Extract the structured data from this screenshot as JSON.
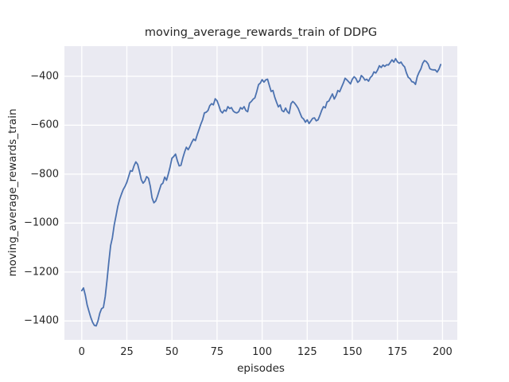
{
  "chart_data": {
    "type": "line",
    "title": "moving_average_rewards_train of DDPG",
    "xlabel": "episodes",
    "ylabel": "moving_average_rewards_train",
    "x_ticks": [
      0,
      25,
      50,
      75,
      100,
      125,
      150,
      175,
      200
    ],
    "y_ticks": [
      -400,
      -600,
      -800,
      -1000,
      -1200,
      -1400
    ],
    "xlim": [
      -9.6,
      208.2
    ],
    "ylim": [
      -1477,
      -277
    ],
    "grid": true,
    "legend": false,
    "x0": 0,
    "dx": 1,
    "series": [
      {
        "name": "moving_average_rewards_train",
        "color": "#4c72b0",
        "values": [
          -1276,
          -1265,
          -1295,
          -1335,
          -1360,
          -1385,
          -1405,
          -1418,
          -1420,
          -1400,
          -1368,
          -1350,
          -1345,
          -1300,
          -1235,
          -1160,
          -1092,
          -1060,
          -1008,
          -970,
          -932,
          -903,
          -882,
          -863,
          -850,
          -833,
          -810,
          -786,
          -788,
          -765,
          -750,
          -760,
          -790,
          -822,
          -837,
          -828,
          -810,
          -817,
          -850,
          -897,
          -917,
          -910,
          -890,
          -866,
          -843,
          -837,
          -812,
          -825,
          -800,
          -770,
          -735,
          -728,
          -718,
          -745,
          -766,
          -764,
          -735,
          -710,
          -690,
          -700,
          -686,
          -670,
          -657,
          -663,
          -640,
          -618,
          -596,
          -578,
          -550,
          -547,
          -540,
          -520,
          -512,
          -517,
          -492,
          -500,
          -520,
          -542,
          -550,
          -538,
          -543,
          -524,
          -532,
          -528,
          -542,
          -548,
          -550,
          -545,
          -528,
          -534,
          -524,
          -540,
          -545,
          -510,
          -503,
          -494,
          -488,
          -463,
          -434,
          -428,
          -414,
          -424,
          -415,
          -412,
          -438,
          -462,
          -458,
          -486,
          -506,
          -525,
          -517,
          -540,
          -545,
          -530,
          -545,
          -552,
          -512,
          -503,
          -510,
          -520,
          -532,
          -550,
          -568,
          -575,
          -588,
          -578,
          -593,
          -583,
          -572,
          -570,
          -582,
          -578,
          -560,
          -540,
          -524,
          -529,
          -505,
          -501,
          -486,
          -472,
          -493,
          -479,
          -458,
          -463,
          -445,
          -428,
          -408,
          -415,
          -423,
          -431,
          -412,
          -402,
          -409,
          -425,
          -418,
          -397,
          -404,
          -416,
          -412,
          -420,
          -405,
          -398,
          -382,
          -387,
          -375,
          -357,
          -364,
          -354,
          -360,
          -353,
          -354,
          -344,
          -333,
          -342,
          -328,
          -341,
          -347,
          -342,
          -354,
          -362,
          -386,
          -404,
          -410,
          -422,
          -424,
          -433,
          -402,
          -384,
          -370,
          -347,
          -336,
          -340,
          -350,
          -369,
          -373,
          -374,
          -374,
          -383,
          -371,
          -352
        ]
      }
    ],
    "colors": {
      "axes_background": "#eaeaf2",
      "grid": "#ffffff",
      "line": "#4c72b0",
      "text": "#262626",
      "figure_background": "#ffffff"
    }
  }
}
